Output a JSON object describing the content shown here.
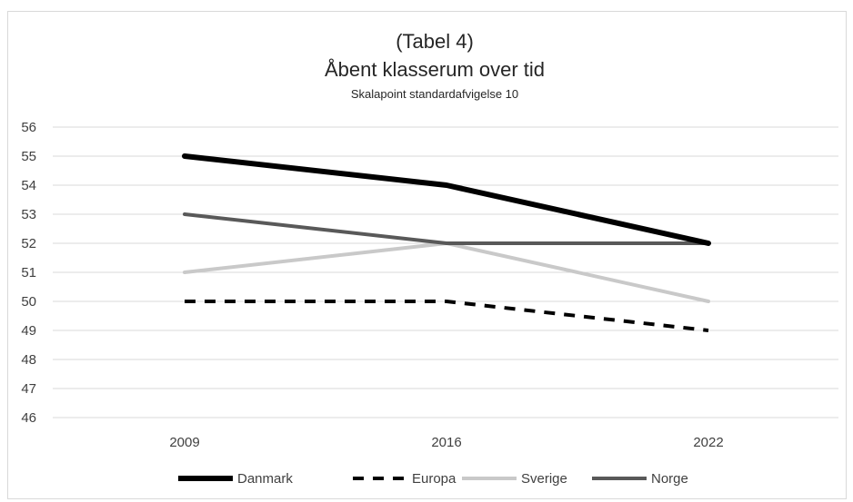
{
  "chart_data": {
    "type": "line",
    "title_line1": "(Tabel 4)",
    "title_line2": "Åbent klasserum over tid",
    "subtitle": "Skalapoint standardafvigelse 10",
    "xlabel": "",
    "ylabel": "",
    "categories": [
      "2009",
      "2016",
      "2022"
    ],
    "ylim": [
      46,
      56
    ],
    "yticks": [
      46,
      47,
      48,
      49,
      50,
      51,
      52,
      53,
      54,
      55,
      56
    ],
    "grid": true,
    "legend_position": "bottom",
    "series": [
      {
        "name": "Danmark",
        "values": [
          55,
          54,
          52
        ],
        "color": "#000000",
        "style": "solid",
        "weight": "thick"
      },
      {
        "name": "Europa",
        "values": [
          50,
          50,
          49
        ],
        "color": "#000000",
        "style": "dashed",
        "weight": "medium"
      },
      {
        "name": "Sverige",
        "values": [
          51,
          52,
          50
        ],
        "color": "#c9c9c9",
        "style": "solid",
        "weight": "medium"
      },
      {
        "name": "Norge",
        "values": [
          53,
          52,
          52
        ],
        "color": "#595959",
        "style": "solid",
        "weight": "medium"
      }
    ]
  }
}
